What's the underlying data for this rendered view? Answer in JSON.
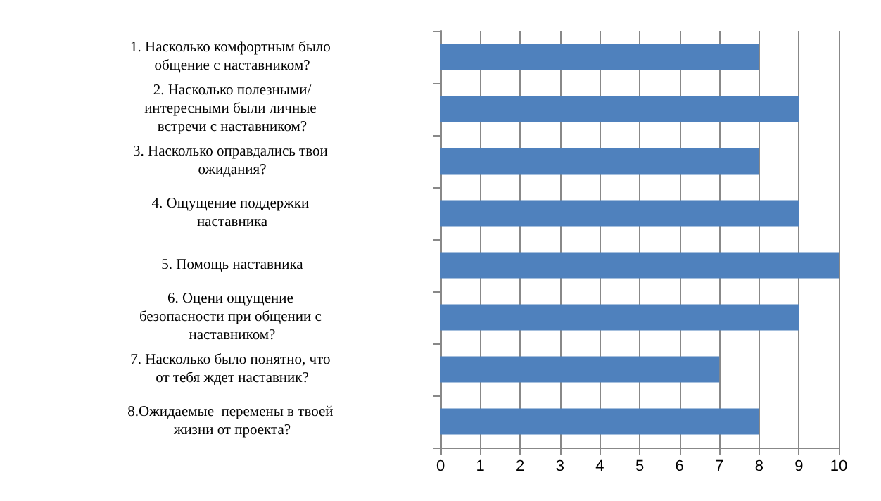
{
  "chart_data": {
    "type": "bar",
    "orientation": "horizontal",
    "categories": [
      "1. Насколько комфортным было общение с наставником?",
      "2. Насколько полезными/интересными были личные встречи с наставником?",
      "3. Насколько оправдались твои ожидания?",
      "4. Ощущение поддержки наставника",
      "5. Помощь наставника",
      "6. Оцени ощущение безопасности при общении с наставником?",
      "7. Насколько было понятно, что от тебя ждет наставник?",
      "8.Ожидаемые  перемены в твоей жизни от проекта?"
    ],
    "values": [
      8,
      9,
      8,
      9,
      10,
      9,
      7,
      8
    ],
    "color": "#4f81bd",
    "xlim": [
      0,
      10
    ],
    "xticks": [
      0,
      1,
      2,
      3,
      4,
      5,
      6,
      7,
      8,
      9,
      10
    ],
    "grid": "x"
  }
}
